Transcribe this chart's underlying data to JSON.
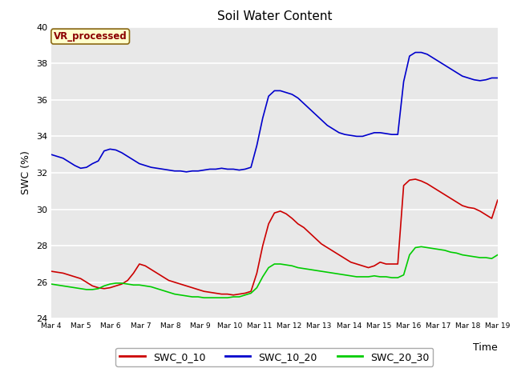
{
  "title": "Soil Water Content",
  "xlabel": "Time",
  "ylabel": "SWC (%)",
  "annotation": "VR_processed",
  "ylim": [
    24,
    40
  ],
  "fig_bg": "#ffffff",
  "plot_bg": "#e8e8e8",
  "line_colors": {
    "SWC_0_10": "#cc0000",
    "SWC_10_20": "#0000cc",
    "SWC_20_30": "#00cc00"
  },
  "x_tick_labels": [
    "Mar 4",
    "Mar 5",
    "Mar 6",
    "Mar 7",
    "Mar 8",
    "Mar 9",
    "Mar 10",
    "Mar 11",
    "Mar 12",
    "Mar 13",
    "Mar 14",
    "Mar 15",
    "Mar 16",
    "Mar 17",
    "Mar 18",
    "Mar 19"
  ],
  "swc_0_10": [
    26.6,
    26.55,
    26.5,
    26.4,
    26.3,
    26.2,
    26.0,
    25.8,
    25.7,
    25.65,
    25.7,
    25.8,
    25.9,
    26.1,
    26.5,
    27.0,
    26.9,
    26.7,
    26.5,
    26.3,
    26.1,
    26.0,
    25.9,
    25.8,
    25.7,
    25.6,
    25.5,
    25.45,
    25.4,
    25.35,
    25.35,
    25.3,
    25.35,
    25.4,
    25.5,
    26.5,
    28.0,
    29.2,
    29.8,
    29.9,
    29.75,
    29.5,
    29.2,
    29.0,
    28.7,
    28.4,
    28.1,
    27.9,
    27.7,
    27.5,
    27.3,
    27.1,
    27.0,
    26.9,
    26.8,
    26.9,
    27.1,
    27.0,
    27.0,
    27.0,
    31.3,
    31.6,
    31.65,
    31.55,
    31.4,
    31.2,
    31.0,
    30.8,
    30.6,
    30.4,
    30.2,
    30.1,
    30.05,
    29.9,
    29.7,
    29.5,
    30.5
  ],
  "swc_10_20": [
    33.0,
    32.9,
    32.8,
    32.6,
    32.4,
    32.25,
    32.3,
    32.5,
    32.65,
    33.2,
    33.3,
    33.25,
    33.1,
    32.9,
    32.7,
    32.5,
    32.4,
    32.3,
    32.25,
    32.2,
    32.15,
    32.1,
    32.1,
    32.05,
    32.1,
    32.1,
    32.15,
    32.2,
    32.2,
    32.25,
    32.2,
    32.2,
    32.15,
    32.2,
    32.3,
    33.5,
    35.0,
    36.2,
    36.5,
    36.5,
    36.4,
    36.3,
    36.1,
    35.8,
    35.5,
    35.2,
    34.9,
    34.6,
    34.4,
    34.2,
    34.1,
    34.05,
    34.0,
    34.0,
    34.1,
    34.2,
    34.2,
    34.15,
    34.1,
    34.1,
    37.0,
    38.4,
    38.6,
    38.6,
    38.5,
    38.3,
    38.1,
    37.9,
    37.7,
    37.5,
    37.3,
    37.2,
    37.1,
    37.05,
    37.1,
    37.2,
    37.2
  ],
  "swc_20_30": [
    25.9,
    25.85,
    25.8,
    25.75,
    25.7,
    25.65,
    25.6,
    25.6,
    25.65,
    25.8,
    25.9,
    25.95,
    25.95,
    25.9,
    25.85,
    25.85,
    25.8,
    25.75,
    25.65,
    25.55,
    25.45,
    25.35,
    25.3,
    25.25,
    25.2,
    25.2,
    25.15,
    25.15,
    25.15,
    25.15,
    25.15,
    25.2,
    25.2,
    25.3,
    25.4,
    25.7,
    26.3,
    26.8,
    27.0,
    27.0,
    26.95,
    26.9,
    26.8,
    26.75,
    26.7,
    26.65,
    26.6,
    26.55,
    26.5,
    26.45,
    26.4,
    26.35,
    26.3,
    26.3,
    26.3,
    26.35,
    26.3,
    26.3,
    26.25,
    26.25,
    26.4,
    27.5,
    27.9,
    27.95,
    27.9,
    27.85,
    27.8,
    27.75,
    27.65,
    27.6,
    27.5,
    27.45,
    27.4,
    27.35,
    27.35,
    27.3,
    27.5
  ]
}
